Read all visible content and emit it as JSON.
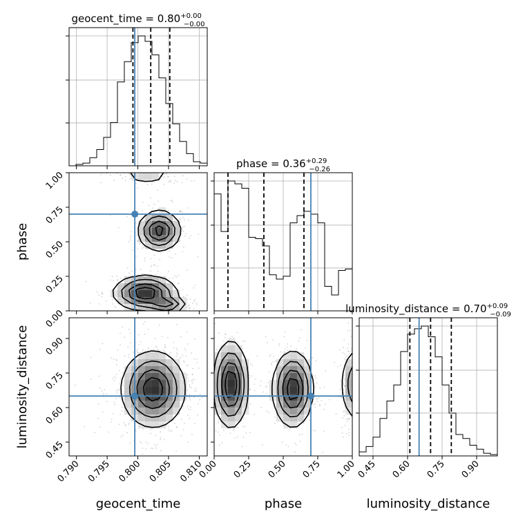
{
  "chart_data": {
    "type": "corner",
    "parameters": [
      {
        "key": "geocent_time",
        "label": "geocent_time",
        "range": [
          0.7888,
          0.8113
        ],
        "ticks": [
          0.79,
          0.795,
          0.8,
          0.805,
          0.81
        ],
        "tick_labels": [
          "0.790",
          "0.795",
          "0.800",
          "0.805",
          "0.810"
        ],
        "truth": 0.7995,
        "quantiles": [
          0.7992,
          0.8021,
          0.8052
        ],
        "title": {
          "main": "geocent_time = 0.80",
          "sup": "+0.00",
          "sub": "−0.00"
        }
      },
      {
        "key": "phase",
        "label": "phase",
        "range": [
          0.0,
          1.0
        ],
        "ticks": [
          0.0,
          0.25,
          0.5,
          0.75,
          1.0
        ],
        "tick_labels": [
          "0.00",
          "0.25",
          "0.50",
          "0.75",
          "1.00"
        ],
        "truth": 0.7,
        "quantiles": [
          0.1,
          0.36,
          0.65
        ],
        "title": {
          "main": "phase = 0.36",
          "sup": "+0.29",
          "sub": "−0.26"
        }
      },
      {
        "key": "luminosity_distance",
        "label": "luminosity_distance",
        "range": [
          0.39,
          0.99
        ],
        "ticks": [
          0.45,
          0.6,
          0.75,
          0.9
        ],
        "tick_labels": [
          "0.45",
          "0.60",
          "0.75",
          "0.90"
        ],
        "truth": 0.65,
        "quantiles": [
          0.61,
          0.7,
          0.79
        ],
        "title": {
          "main": "luminosity_distance = 0.70",
          "sup": "+0.09",
          "sub": "−0.09"
        }
      }
    ],
    "histograms": {
      "geocent_time": {
        "bins": 20,
        "counts": [
          0.0,
          0.01,
          0.02,
          0.06,
          0.12,
          0.21,
          0.32,
          0.62,
          0.77,
          0.91,
          0.96,
          0.92,
          0.82,
          0.65,
          0.46,
          0.31,
          0.18,
          0.09,
          0.03,
          0.02
        ]
      },
      "phase": {
        "bins": 20,
        "counts": [
          0.81,
          0.55,
          0.9,
          0.88,
          0.85,
          0.51,
          0.5,
          0.45,
          0.25,
          0.22,
          0.24,
          0.61,
          0.66,
          0.69,
          0.67,
          0.61,
          0.17,
          0.11,
          0.28,
          0.29
        ]
      },
      "luminosity_distance": {
        "bins": 20,
        "counts": [
          0.03,
          0.07,
          0.14,
          0.28,
          0.41,
          0.53,
          0.78,
          0.91,
          0.95,
          0.97,
          0.89,
          0.74,
          0.53,
          0.32,
          0.16,
          0.13,
          0.08,
          0.05,
          0.02,
          0.01
        ]
      }
    },
    "modes_2d": {
      "phase_vs_geocent_time": [
        {
          "x": 0.8035,
          "y": 0.58,
          "sx": 0.0017,
          "sy": 0.07,
          "w": 0.9
        },
        {
          "x": 0.8012,
          "y": 0.13,
          "sx": 0.0025,
          "sy": 0.06,
          "w": 1.0
        },
        {
          "x": 0.8048,
          "y": 0.04,
          "sx": 0.0015,
          "sy": 0.03,
          "w": 0.6
        },
        {
          "x": 0.8015,
          "y": 0.98,
          "sx": 0.0025,
          "sy": 0.03,
          "w": 0.25
        }
      ],
      "luminosity_distance_vs_geocent_time": [
        {
          "x": 0.8025,
          "y": 0.68,
          "sx": 0.0025,
          "sy": 0.08,
          "w": 1.0
        }
      ],
      "luminosity_distance_vs_phase": [
        {
          "x": 0.12,
          "y": 0.7,
          "sx": 0.06,
          "sy": 0.09,
          "w": 1.0
        },
        {
          "x": 0.57,
          "y": 0.68,
          "sx": 0.07,
          "sy": 0.08,
          "w": 0.95
        },
        {
          "x": 0.99,
          "y": 0.7,
          "sx": 0.03,
          "sy": 0.08,
          "w": 0.5
        }
      ]
    },
    "colors": {
      "truth": "#4682b4",
      "line": "#000000",
      "grid": "#b0b0b0",
      "points": "#808080"
    },
    "grid": true
  }
}
